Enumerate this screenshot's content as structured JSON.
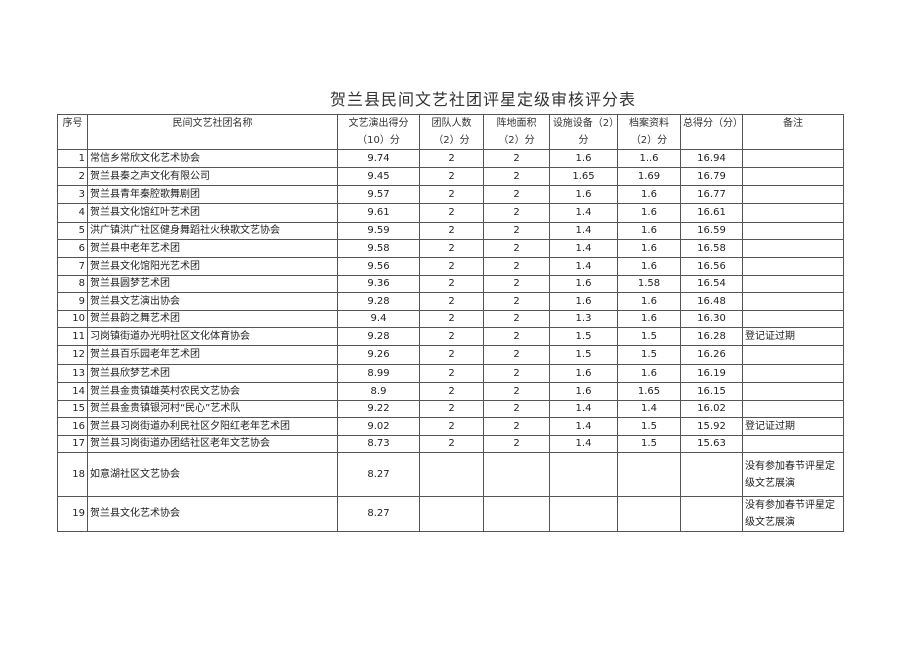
{
  "title": "贺兰县民间文艺社团评星定级审核评分表",
  "headers": [
    "序号",
    "民间文艺社团名称",
    "文艺演出得分（10）分",
    "团队人数（2）分",
    "阵地面积（2）分",
    "设施设备（2）分",
    "档案资料（2）分",
    "总得分（分）",
    "备注"
  ],
  "rows": [
    [
      "1",
      "常信乡常欣文化艺术协会",
      "9.74",
      "2",
      "2",
      "1.6",
      "1..6",
      "16.94",
      ""
    ],
    [
      "2",
      "贺兰县秦之声文化有限公司",
      "9.45",
      "2",
      "2",
      "1.65",
      "1.69",
      "16.79",
      ""
    ],
    [
      "3",
      "贺兰县青年秦腔歌舞剧团",
      "9.57",
      "2",
      "2",
      "1.6",
      "1.6",
      "16.77",
      ""
    ],
    [
      "4",
      "贺兰县文化馆红叶艺术团",
      "9.61",
      "2",
      "2",
      "1.4",
      "1.6",
      "16.61",
      ""
    ],
    [
      "5",
      "洪广镇洪广社区健身舞蹈社火秧歌文艺协会",
      "9.59",
      "2",
      "2",
      "1.4",
      "1.6",
      "16.59",
      ""
    ],
    [
      "6",
      "贺兰县中老年艺术团",
      "9.58",
      "2",
      "2",
      "1.4",
      "1.6",
      "16.58",
      ""
    ],
    [
      "7",
      "贺兰县文化馆阳光艺术团",
      "9.56",
      "2",
      "2",
      "1.4",
      "1.6",
      "16.56",
      ""
    ],
    [
      "8",
      "贺兰县圆梦艺术团",
      "9.36",
      "2",
      "2",
      "1.6",
      "1.58",
      "16.54",
      ""
    ],
    [
      "9",
      "贺兰县文艺演出协会",
      "9.28",
      "2",
      "2",
      "1.6",
      "1.6",
      "16.48",
      ""
    ],
    [
      "10",
      "贺兰县韵之舞艺术团",
      "9.4",
      "2",
      "2",
      "1.3",
      "1.6",
      "16.30",
      ""
    ],
    [
      "11",
      "习岗镇街道办光明社区文化体育协会",
      "9.28",
      "2",
      "2",
      "1.5",
      "1.5",
      "16.28",
      "登记证过期"
    ],
    [
      "12",
      "贺兰县百乐园老年艺术团",
      "9.26",
      "2",
      "2",
      "1.5",
      "1.5",
      "16.26",
      ""
    ],
    [
      "13",
      "贺兰县欣梦艺术团",
      "8.99",
      "2",
      "2",
      "1.6",
      "1.6",
      "16.19",
      ""
    ],
    [
      "14",
      "贺兰县金贵镇雄英村农民文艺协会",
      "8.9",
      "2",
      "2",
      "1.6",
      "1.65",
      "16.15",
      ""
    ],
    [
      "15",
      "贺兰县金贵镇银河村“民心”艺术队",
      "9.22",
      "2",
      "2",
      "1.4",
      "1.4",
      "16.02",
      ""
    ],
    [
      "16",
      "贺兰县习岗街道办利民社区夕阳红老年艺术团",
      "9.02",
      "2",
      "2",
      "1.4",
      "1.5",
      "15.92",
      "登记证过期"
    ],
    [
      "17",
      "贺兰县习岗街道办团结社区老年文艺协会",
      "8.73",
      "2",
      "2",
      "1.4",
      "1.5",
      "15.63",
      ""
    ],
    [
      "18",
      "如意湖社区文艺协会",
      "8.27",
      "",
      "",
      "",
      "",
      "",
      "没有参加春节评星定级文艺展演"
    ],
    [
      "19",
      "贺兰县文化艺术协会",
      "8.27",
      "",
      "",
      "",
      "",
      "",
      "没有参加春节评星定级文艺展演"
    ]
  ]
}
